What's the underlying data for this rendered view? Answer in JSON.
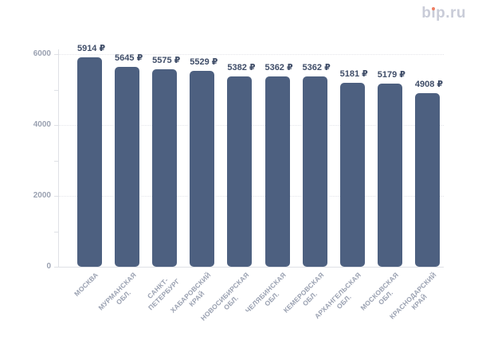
{
  "logo": {
    "text": "bip.ru"
  },
  "colors": {
    "bar": "#4d6080",
    "value_label": "#3f4d68",
    "axis_text": "#9aa1b1",
    "gridline": "#e4e5ea",
    "axis_line": "#dfe1e6",
    "logo_text": "#c9ccd8",
    "logo_dot": "#ee7e62",
    "background": "#ffffff"
  },
  "chart_data": {
    "type": "bar",
    "title": "",
    "xlabel": "",
    "ylabel": "",
    "unit": "₽",
    "categories": [
      "МОСКВА",
      "МУРМАНСКАЯ\nОБЛ.",
      "САНКТ-\nПЕТЕРБУРГ",
      "ХАБАРОВСКИЙ\nКРАЙ",
      "НОВОСИБИРСКАЯ\nОБЛ.",
      "ЧЕЛЯБИНСКАЯ\nОБЛ.",
      "КЕМЕРОВСКАЯ\nОБЛ.",
      "АРХАНГЕЛЬСКАЯ\nОБЛ.",
      "МОСКОВСКАЯ\nОБЛ.",
      "КРАСНОДАРСКИЙ\nКРАЙ"
    ],
    "values": [
      5914,
      5645,
      5575,
      5529,
      5382,
      5362,
      5362,
      5181,
      5179,
      4908
    ],
    "data_labels": [
      "5914 ₽",
      "5645 ₽",
      "5575 ₽",
      "5529 ₽",
      "5382 ₽",
      "5362 ₽",
      "5362 ₽",
      "5181 ₽",
      "5179 ₽",
      "4908 ₽"
    ],
    "ylim": [
      0,
      6000
    ],
    "ytick_labels": [
      "0",
      "2000",
      "4000",
      "6000"
    ],
    "ytick_values_labeled": [
      0,
      2000,
      4000,
      6000
    ],
    "ytick_minor_step": 1000,
    "grid": true,
    "legend": false,
    "bar_corner_radius_px": 5
  }
}
